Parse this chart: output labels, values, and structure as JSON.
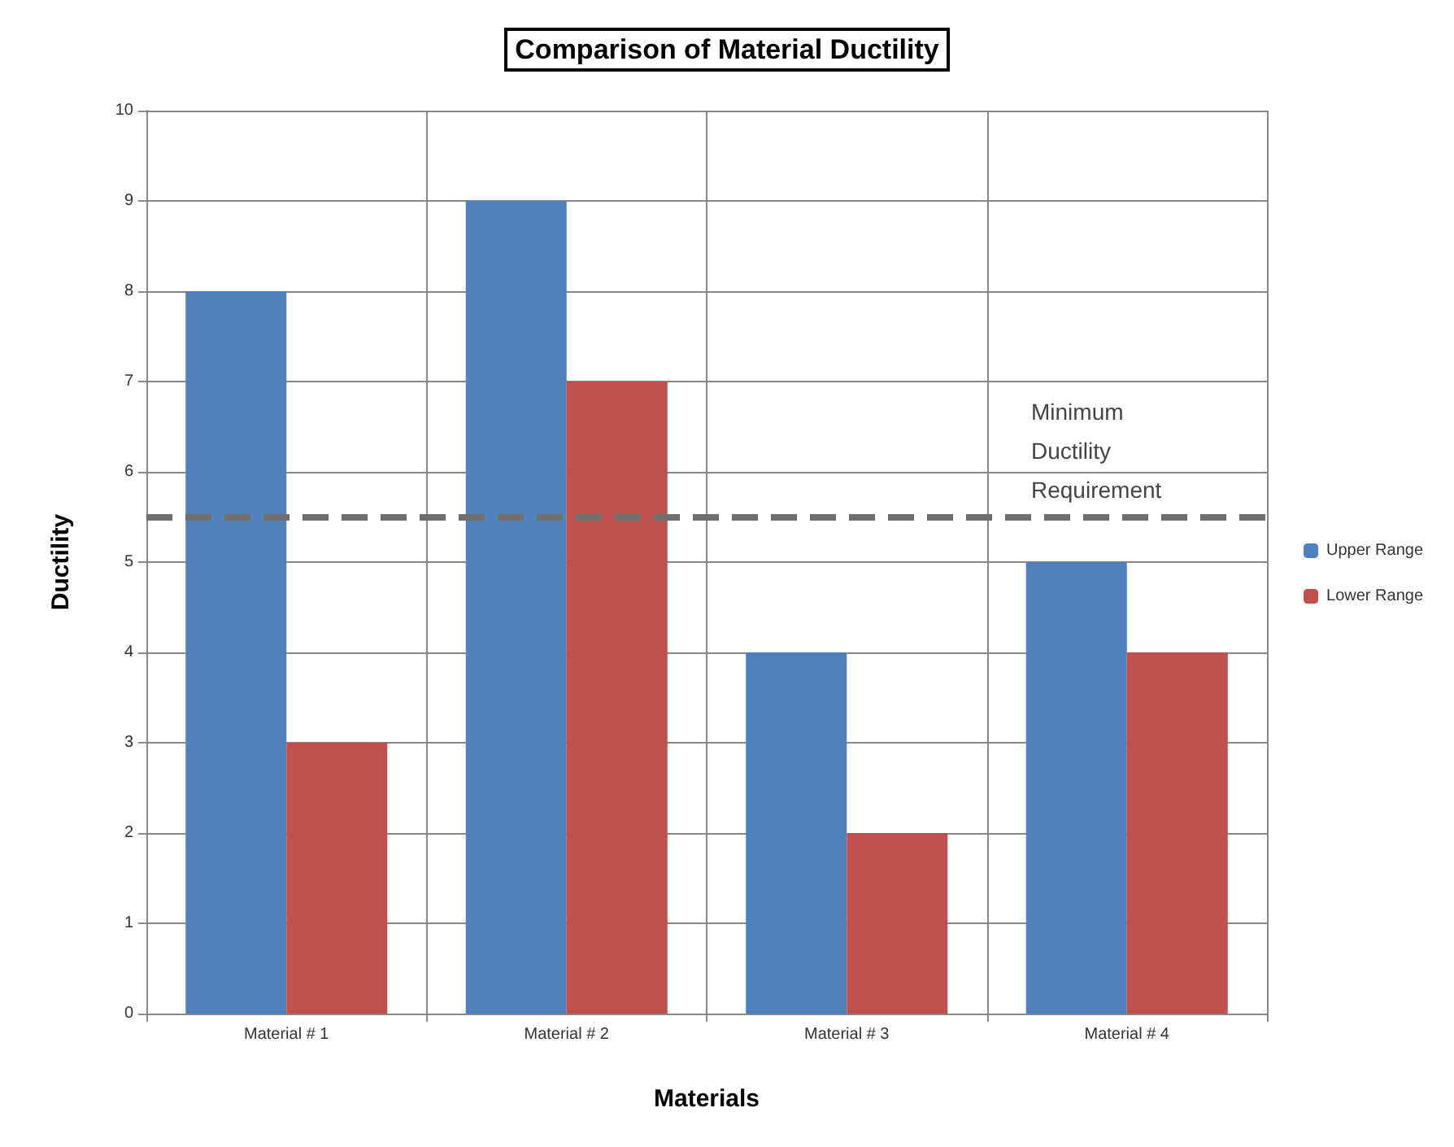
{
  "chart_data": {
    "type": "bar",
    "title": "Comparison of Material Ductility",
    "xlabel": "Materials",
    "ylabel": "Ductility",
    "categories": [
      "Material # 1",
      "Material # 2",
      "Material # 3",
      "Material # 4"
    ],
    "series": [
      {
        "name": "Upper Range",
        "color": "#4f81bd",
        "values": [
          8,
          9,
          4,
          5
        ]
      },
      {
        "name": "Lower Range",
        "color": "#c0504d",
        "values": [
          3,
          7,
          2,
          4
        ]
      }
    ],
    "ylim": [
      0,
      10
    ],
    "yticks": [
      0,
      1,
      2,
      3,
      4,
      5,
      6,
      7,
      8,
      9,
      10
    ],
    "ref_lines": [
      {
        "axis": "y",
        "value": 5.5,
        "label": "Minimum\nDuctility\nRequirement",
        "color": "#707070",
        "line_style": "dashed"
      }
    ],
    "grid": true,
    "legend": "right"
  }
}
